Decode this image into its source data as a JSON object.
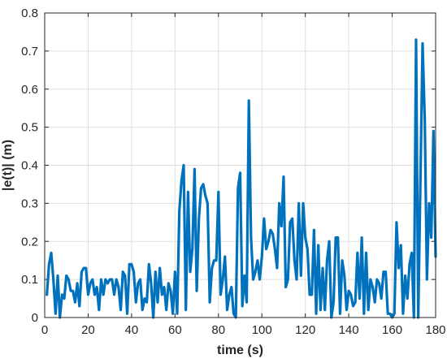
{
  "chart_data": {
    "type": "line",
    "title": "",
    "xlabel": "time (s)",
    "ylabel": "|e(t)| (m)",
    "xlim": [
      0,
      180
    ],
    "ylim": [
      0,
      0.8
    ],
    "xticks": [
      "0",
      "20",
      "40",
      "60",
      "80",
      "100",
      "120",
      "140",
      "160",
      "180"
    ],
    "yticks": [
      "0",
      "0.1",
      "0.2",
      "0.3",
      "0.4",
      "0.5",
      "0.6",
      "0.7",
      "0.8"
    ],
    "grid": true,
    "line_color": "#0072BD",
    "series": [
      {
        "x": [
          1,
          2,
          3,
          4,
          5,
          6,
          7,
          8,
          9,
          10,
          11,
          12,
          13,
          14,
          15,
          16,
          17,
          18,
          19,
          20,
          21,
          22,
          23,
          24,
          25,
          26,
          27,
          28,
          29,
          30,
          31,
          32,
          33,
          34,
          35,
          36,
          37,
          38,
          39,
          40,
          41,
          42,
          43,
          44,
          45,
          46,
          47,
          48,
          49,
          50,
          51,
          52,
          53,
          54,
          55,
          56,
          57,
          58,
          59,
          60,
          61,
          62,
          63,
          64,
          65,
          66,
          67,
          68,
          69,
          70,
          71,
          72,
          73,
          74,
          75,
          76,
          77,
          78,
          79,
          80,
          81,
          82,
          83,
          84,
          85,
          86,
          87,
          88,
          89,
          90,
          91,
          92,
          93,
          94,
          95,
          96,
          97,
          98,
          99,
          100,
          101,
          102,
          103,
          104,
          105,
          106,
          107,
          108,
          109,
          110,
          111,
          112,
          113,
          114,
          115,
          116,
          117,
          118,
          119,
          120,
          121,
          122,
          123,
          124,
          125,
          126,
          127,
          128,
          129,
          130,
          131,
          132,
          133,
          134,
          135,
          136,
          137,
          138,
          139,
          140,
          141,
          142,
          143,
          144,
          145,
          146,
          147,
          148,
          149,
          150,
          151,
          152,
          153,
          154,
          155,
          156,
          157,
          158,
          159,
          160,
          161,
          162,
          163,
          164,
          165,
          166,
          167,
          168,
          169,
          170,
          171,
          172,
          173,
          174,
          175,
          176,
          177,
          178,
          179,
          180
        ],
        "y": [
          0.06,
          0.14,
          0.17,
          0.1,
          0.01,
          0.11,
          0.0,
          0.06,
          0.05,
          0.11,
          0.1,
          0.07,
          0.07,
          0.04,
          0.09,
          0.03,
          0.12,
          0.13,
          0.13,
          0.06,
          0.09,
          0.1,
          0.06,
          0.08,
          0.02,
          0.1,
          0.06,
          0.1,
          0.09,
          0.1,
          0.1,
          0.06,
          0.1,
          0.08,
          0.02,
          0.12,
          0.11,
          0.01,
          0.14,
          0.14,
          0.12,
          0.04,
          0.09,
          0.1,
          0.02,
          0.05,
          0.04,
          0.14,
          0.09,
          0.0,
          0.12,
          0.04,
          0.13,
          0.06,
          0.08,
          0.02,
          0.09,
          0.07,
          0.01,
          0.12,
          0.01,
          0.28,
          0.36,
          0.4,
          0.02,
          0.33,
          0.12,
          0.18,
          0.39,
          0.07,
          0.26,
          0.34,
          0.35,
          0.32,
          0.3,
          0.04,
          0.13,
          0.15,
          0.15,
          0.33,
          0.06,
          0.1,
          0.16,
          0.02,
          0.06,
          0.08,
          0.01,
          0.0,
          0.34,
          0.38,
          0.03,
          0.11,
          0.04,
          0.57,
          0.21,
          0.1,
          0.12,
          0.15,
          0.1,
          0.16,
          0.26,
          0.18,
          0.2,
          0.23,
          0.22,
          0.18,
          0.13,
          0.3,
          0.24,
          0.37,
          0.08,
          0.1,
          0.25,
          0.26,
          0.15,
          0.1,
          0.3,
          0.11,
          0.3,
          0.21,
          0.18,
          0.06,
          0.06,
          0.23,
          0.01,
          0.19,
          0.02,
          0.13,
          0.02,
          0.15,
          0.2,
          0.0,
          0.04,
          0.21,
          0.21,
          0.01,
          0.15,
          0.11,
          0.02,
          0.07,
          0.06,
          0.03,
          0.04,
          0.17,
          0.05,
          0.21,
          0.01,
          0.17,
          0.02,
          0.1,
          0.08,
          0.04,
          0.1,
          0.09,
          0.05,
          0.12,
          0.12,
          0.01,
          0.01,
          0.0,
          0.01,
          0.25,
          0.13,
          0.19,
          0.01,
          0.11,
          0.05,
          0.14,
          0.17,
          0.0,
          0.73,
          0.0,
          0.36,
          0.72,
          0.52,
          0.1,
          0.3,
          0.21,
          0.49,
          0.16
        ]
      }
    ]
  }
}
